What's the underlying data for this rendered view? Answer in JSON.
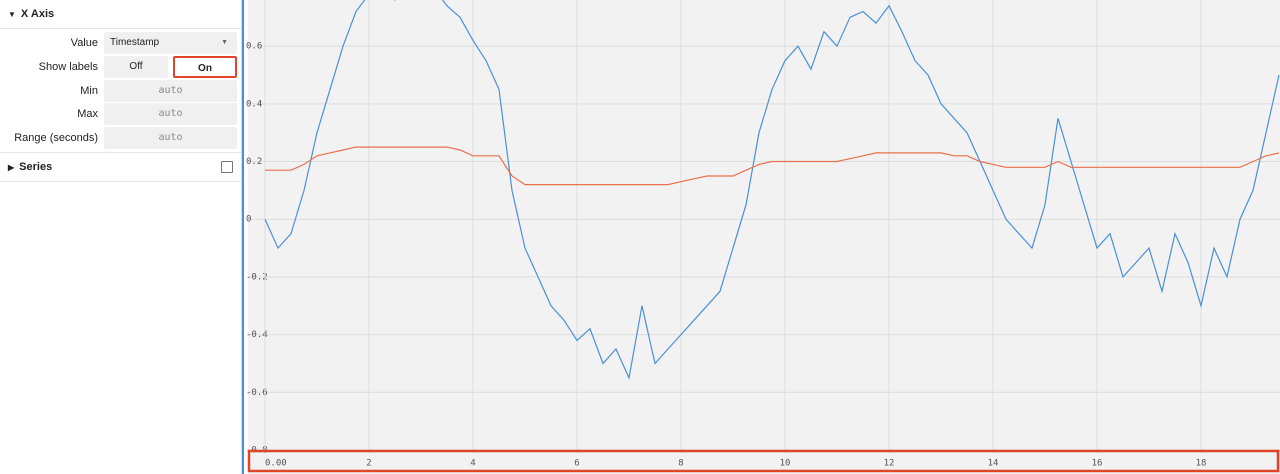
{
  "panel": {
    "sections": [
      {
        "title": "X Axis",
        "fields": [
          {
            "label": "Value",
            "value": "Timestamp"
          },
          {
            "label": "Show labels",
            "options": [
              "Off",
              "On"
            ],
            "selected": 1
          },
          {
            "label": "Min",
            "placeholder": "auto"
          },
          {
            "label": "Max",
            "placeholder": "auto"
          },
          {
            "label": "Range (seconds)",
            "placeholder": "auto"
          }
        ]
      },
      {
        "title": "Series"
      }
    ]
  },
  "chart_data": {
    "type": "line",
    "x": [
      0,
      0.25,
      0.5,
      0.75,
      1,
      1.25,
      1.5,
      1.75,
      2,
      2.25,
      2.5,
      2.75,
      3,
      3.25,
      3.5,
      3.75,
      4,
      4.25,
      4.5,
      4.75,
      5,
      5.25,
      5.5,
      5.75,
      6,
      6.25,
      6.5,
      6.75,
      7,
      7.25,
      7.5,
      7.75,
      8,
      8.25,
      8.5,
      8.75,
      9,
      9.25,
      9.5,
      9.75,
      10,
      10.25,
      10.5,
      10.75,
      11,
      11.25,
      11.5,
      11.75,
      12,
      12.25,
      12.5,
      12.75,
      13,
      13.25,
      13.5,
      13.75,
      14,
      14.25,
      14.5,
      14.75,
      15,
      15.25,
      15.5,
      15.75,
      16,
      16.25,
      16.5,
      16.75,
      17,
      17.25,
      17.5,
      17.75,
      18,
      18.25,
      18.5,
      18.75,
      19,
      19.25,
      19.5
    ],
    "series": [
      {
        "color": "#4a90d9",
        "values": [
          0.0,
          -0.1,
          -0.05,
          0.1,
          0.3,
          0.45,
          0.6,
          0.72,
          0.78,
          0.8,
          0.76,
          0.8,
          0.82,
          0.8,
          0.74,
          0.7,
          0.62,
          0.55,
          0.45,
          0.1,
          -0.1,
          -0.2,
          -0.3,
          -0.35,
          -0.42,
          -0.38,
          -0.5,
          -0.45,
          -0.55,
          -0.3,
          -0.5,
          -0.45,
          -0.4,
          -0.35,
          -0.3,
          -0.25,
          -0.1,
          0.05,
          0.3,
          0.45,
          0.55,
          0.6,
          0.52,
          0.65,
          0.6,
          0.7,
          0.72,
          0.68,
          0.74,
          0.65,
          0.55,
          0.5,
          0.4,
          0.35,
          0.3,
          0.2,
          0.1,
          0.0,
          -0.05,
          -0.1,
          0.05,
          0.35,
          0.2,
          0.05,
          -0.1,
          -0.05,
          -0.2,
          -0.15,
          -0.1,
          -0.25,
          -0.05,
          -0.15,
          -0.3,
          -0.1,
          -0.2,
          0.0,
          0.1,
          0.3,
          0.5
        ]
      },
      {
        "color": "#e8704a",
        "values": [
          0.17,
          0.17,
          0.17,
          0.19,
          0.22,
          0.23,
          0.24,
          0.25,
          0.25,
          0.25,
          0.25,
          0.25,
          0.25,
          0.25,
          0.25,
          0.24,
          0.22,
          0.22,
          0.22,
          0.15,
          0.12,
          0.12,
          0.12,
          0.12,
          0.12,
          0.12,
          0.12,
          0.12,
          0.12,
          0.12,
          0.12,
          0.12,
          0.13,
          0.14,
          0.15,
          0.15,
          0.15,
          0.17,
          0.19,
          0.2,
          0.2,
          0.2,
          0.2,
          0.2,
          0.2,
          0.21,
          0.22,
          0.23,
          0.23,
          0.23,
          0.23,
          0.23,
          0.23,
          0.22,
          0.22,
          0.2,
          0.19,
          0.18,
          0.18,
          0.18,
          0.18,
          0.2,
          0.18,
          0.18,
          0.18,
          0.18,
          0.18,
          0.18,
          0.18,
          0.18,
          0.18,
          0.18,
          0.18,
          0.18,
          0.18,
          0.18,
          0.2,
          0.22,
          0.23
        ]
      }
    ],
    "xlim": [
      0,
      19.5
    ],
    "ylim": [
      -0.8,
      0.76
    ],
    "xticks": [
      {
        "value": 0,
        "label": "0.00"
      },
      2,
      4,
      6,
      8,
      10,
      12,
      14,
      16,
      18
    ],
    "yticks": [
      -0.8,
      -0.6,
      -0.4,
      -0.2,
      0,
      0.2,
      0.4,
      0.6
    ],
    "grid": true
  }
}
